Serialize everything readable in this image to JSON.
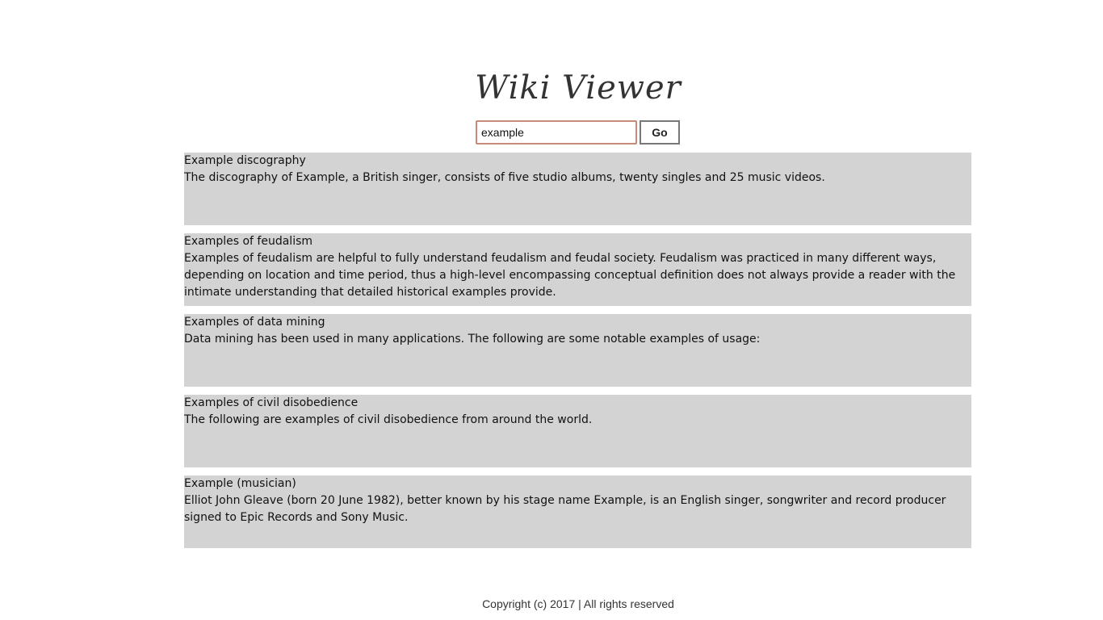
{
  "header": {
    "title": "Wiki Viewer"
  },
  "search": {
    "value": "example",
    "go_label": "Go"
  },
  "results": [
    {
      "title": "Example discography",
      "snippet": "The discography of Example, a British singer, consists of five studio albums, twenty singles and 25 music videos."
    },
    {
      "title": "Examples of feudalism",
      "snippet": "Examples of feudalism are helpful to fully understand feudalism and feudal society. Feudalism was practiced in many different ways, depending on location and time period, thus a high-level encompassing conceptual definition does not always provide a reader with the intimate understanding that detailed historical examples provide."
    },
    {
      "title": "Examples of data mining",
      "snippet": "Data mining has been used in many applications. The following are some notable examples of usage:"
    },
    {
      "title": "Examples of civil disobedience",
      "snippet": "The following are examples of civil disobedience from around the world."
    },
    {
      "title": "Example (musician)",
      "snippet": "Elliot John Gleave (born 20 June 1982), better known by his stage name Example, is an English singer, songwriter and record producer signed to Epic Records and Sony Music."
    }
  ],
  "footer": {
    "copyright": "Copyright (c) 2017 | All rights reserved"
  },
  "colors": {
    "result_background": "#d3d3d3",
    "input_focus_border": "#c98a77"
  }
}
